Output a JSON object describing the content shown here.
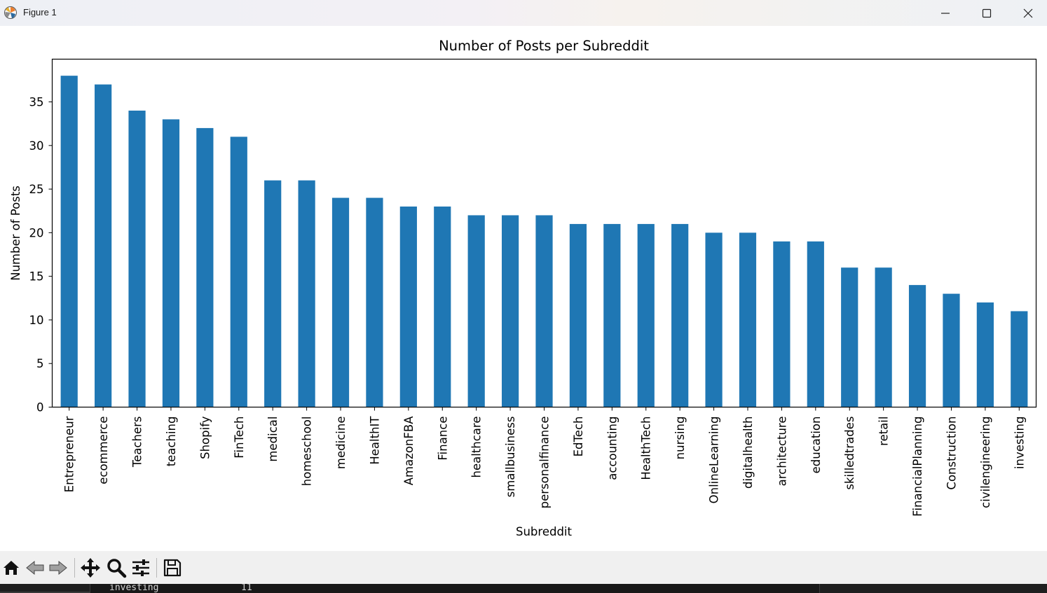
{
  "window": {
    "title": "Figure 1",
    "controls": [
      "minimize",
      "maximize",
      "close"
    ]
  },
  "toolbar": {
    "buttons": [
      {
        "icon": "home-icon",
        "action": "Home"
      },
      {
        "icon": "back-arrow-icon",
        "action": "Back"
      },
      {
        "icon": "forward-arrow-icon",
        "action": "Forward"
      },
      {
        "icon": "pan-move-icon",
        "action": "Pan"
      },
      {
        "icon": "zoom-magnifier-icon",
        "action": "Zoom"
      },
      {
        "icon": "configure-subplots-icon",
        "action": "Subplots"
      },
      {
        "icon": "save-floppy-icon",
        "action": "Save"
      }
    ]
  },
  "console": {
    "row_label": "investing",
    "row_value": "11"
  },
  "chart_data": {
    "type": "bar",
    "title": "Number of Posts per Subreddit",
    "xlabel": "Subreddit",
    "ylabel": "Number of Posts",
    "ylim": [
      0,
      39.9
    ],
    "yticks": [
      0,
      5,
      10,
      15,
      20,
      25,
      30,
      35
    ],
    "bar_color": "#1f77b4",
    "grid": false,
    "legend": "none",
    "categories": [
      "Entrepreneur",
      "ecommerce",
      "Teachers",
      "teaching",
      "Shopify",
      "FinTech",
      "medical",
      "homeschool",
      "medicine",
      "HealthIT",
      "AmazonFBA",
      "Finance",
      "healthcare",
      "smallbusiness",
      "personalfinance",
      "EdTech",
      "accounting",
      "HealthTech",
      "nursing",
      "OnlineLearning",
      "digitalhealth",
      "architecture",
      "education",
      "skilledtrades",
      "retail",
      "FinancialPlanning",
      "Construction",
      "civilengineering",
      "investing"
    ],
    "values": [
      38,
      37,
      34,
      33,
      32,
      31,
      26,
      26,
      24,
      24,
      23,
      23,
      22,
      22,
      22,
      21,
      21,
      21,
      21,
      20,
      20,
      19,
      19,
      16,
      16,
      14,
      13,
      12,
      11
    ]
  }
}
